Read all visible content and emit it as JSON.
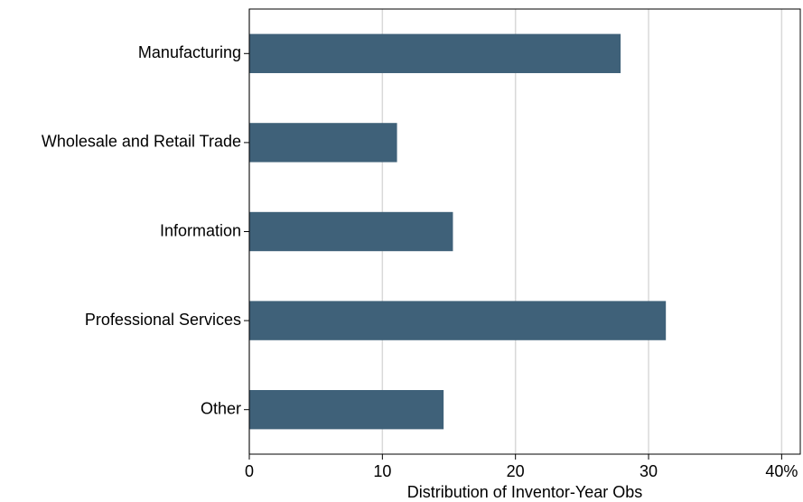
{
  "chart_data": {
    "type": "barh",
    "categories": [
      "Manufacturing",
      "Wholesale and Retail Trade",
      "Information",
      "Professional Services",
      "Other"
    ],
    "values": [
      27.9,
      11.1,
      15.3,
      31.3,
      14.6
    ],
    "color": "#3f6179",
    "x_label": "Distribution of Inventor-Year Obs",
    "xlim": [
      0,
      41.4
    ],
    "xticks": [
      0,
      10,
      20,
      30,
      {
        "value": 40,
        "label": "40%"
      }
    ],
    "grid": true
  }
}
